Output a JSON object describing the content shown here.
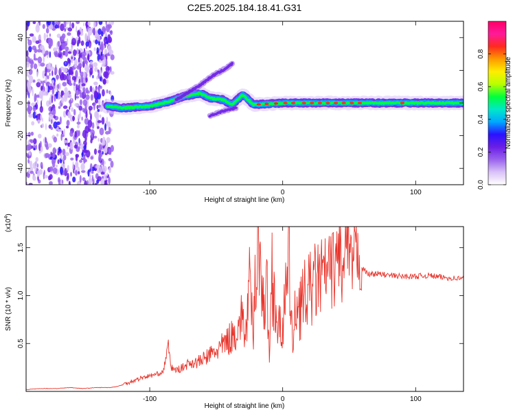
{
  "title": "C2E5.2025.184.18.41.G31",
  "chart_data": [
    {
      "type": "heatmap",
      "xlabel": "Height of straight line (km)",
      "ylabel": "Frequency (Hz)",
      "xlim": [
        -193,
        136
      ],
      "ylim": [
        -50,
        50
      ],
      "xticks": [
        -100,
        0,
        100
      ],
      "yticks": [
        -40,
        -20,
        0,
        20,
        40
      ],
      "colorbar": {
        "label": "Normalized spectral amplitude",
        "range": [
          0,
          1
        ],
        "ticks": [
          0.0,
          0.2,
          0.4,
          0.6,
          0.8
        ],
        "tick_labels": [
          "0.0",
          "0.2",
          "0.4",
          "0.6",
          "0.8"
        ],
        "colors": [
          "#ffffff",
          "#d9c2f7",
          "#9a63ee",
          "#6b1ee6",
          "#2a12ff",
          "#00a8ff",
          "#00e8c8",
          "#00ff3c",
          "#b8ff00",
          "#ffee00",
          "#ff9a00",
          "#ff2a1e",
          "#ff1a9a",
          "#ff0066"
        ]
      },
      "features": {
        "noise_region_x": [
          -193,
          -128
        ],
        "main_ridge": [
          [
            -132,
            -2
          ],
          [
            -120,
            -3
          ],
          [
            -100,
            -2
          ],
          [
            -85,
            1
          ],
          [
            -75,
            4
          ],
          [
            -62,
            6
          ],
          [
            -55,
            3
          ],
          [
            -45,
            2
          ],
          [
            -38,
            -1
          ],
          [
            -30,
            5
          ],
          [
            -22,
            -1
          ],
          [
            -10,
            -0.5
          ],
          [
            0,
            0
          ],
          [
            50,
            0
          ],
          [
            136,
            0
          ]
        ],
        "upper_branch": [
          [
            -80,
            2
          ],
          [
            -70,
            7
          ],
          [
            -62,
            11
          ],
          [
            -52,
            17
          ],
          [
            -45,
            20
          ],
          [
            -38,
            24
          ]
        ],
        "lower_branch": [
          [
            -55,
            -8
          ],
          [
            -45,
            -5
          ],
          [
            -35,
            -3
          ]
        ],
        "peak_markers_x": [
          -18,
          -12,
          -5,
          2,
          8,
          16,
          22,
          28,
          34,
          40,
          46,
          52,
          58,
          90
        ]
      }
    },
    {
      "type": "line",
      "xlabel": "Height of straight line (km)",
      "ylabel": "SNR (10 * v/v)",
      "y_multiplier": "(x10",
      "y_multiplier_exp": "4",
      "y_multiplier_close": ")",
      "xlim": [
        -193,
        136
      ],
      "ylim": [
        0,
        1.72
      ],
      "xticks": [
        -100,
        0,
        100
      ],
      "yticks": [
        0.5,
        1.0,
        1.5
      ],
      "ytick_labels": [
        "0.5",
        "1.0",
        "1.5"
      ],
      "series_color": "#e8332a",
      "series": [
        {
          "x": [
            -193,
            -180,
            -170,
            -160,
            -150,
            -140,
            -130,
            -125,
            -120,
            -115,
            -110,
            -105,
            -100,
            -95,
            -90,
            -86,
            -84,
            -80,
            -75,
            -70,
            -65,
            -60,
            -55,
            -50,
            -45,
            -40,
            -35,
            -30,
            -28,
            -25,
            -22,
            -20,
            -18,
            -15,
            -12,
            -10,
            -8,
            -5,
            -3,
            0,
            3,
            5,
            8,
            10,
            12,
            15,
            20,
            25,
            30,
            35,
            40,
            43,
            45,
            48,
            50,
            52,
            55,
            60,
            65,
            70,
            80,
            90,
            100,
            110,
            120,
            130,
            136
          ],
          "y": [
            0.02,
            0.03,
            0.03,
            0.04,
            0.03,
            0.04,
            0.04,
            0.05,
            0.07,
            0.1,
            0.12,
            0.15,
            0.16,
            0.18,
            0.2,
            0.48,
            0.25,
            0.22,
            0.25,
            0.3,
            0.3,
            0.33,
            0.38,
            0.42,
            0.48,
            0.55,
            0.62,
            0.8,
            0.55,
            1.1,
            0.6,
            1.4,
            1.72,
            0.85,
            1.1,
            0.4,
            1.25,
            0.85,
            0.6,
            0.75,
            1.0,
            1.35,
            0.35,
            1.0,
            0.9,
            0.95,
            1.05,
            1.15,
            1.2,
            1.25,
            1.3,
            1.55,
            1.1,
            1.62,
            1.35,
            1.3,
            1.45,
            1.28,
            1.22,
            1.23,
            1.21,
            1.2,
            1.2,
            1.21,
            1.19,
            1.18,
            1.18
          ]
        }
      ]
    }
  ]
}
